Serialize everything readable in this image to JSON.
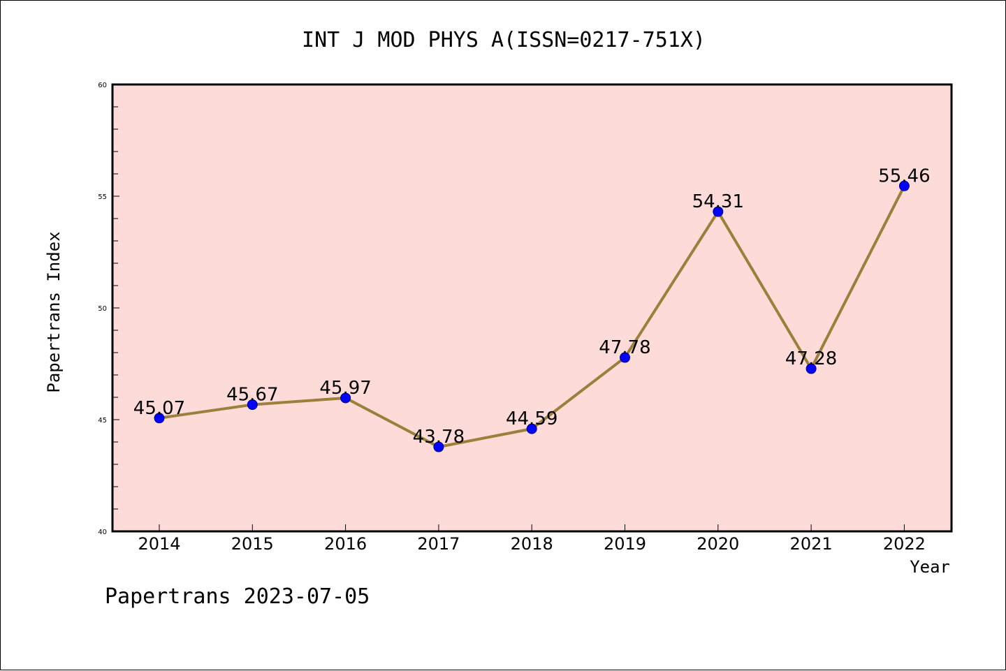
{
  "chart_data": {
    "type": "line",
    "title": "INT J MOD PHYS A(ISSN=0217-751X)",
    "xlabel": "Year",
    "ylabel": "Papertrans Index",
    "categories": [
      "2014",
      "2015",
      "2016",
      "2017",
      "2018",
      "2019",
      "2020",
      "2021",
      "2022"
    ],
    "series": [
      {
        "values": [
          45.07,
          45.67,
          45.97,
          43.78,
          44.59,
          47.78,
          54.31,
          47.28,
          55.46
        ],
        "labels": [
          "45.07",
          "45.67",
          "45.97",
          "43.78",
          "44.59",
          "47.78",
          "54.31",
          "47.28",
          "55.46"
        ]
      }
    ],
    "ylim": [
      40,
      60
    ],
    "yticks": [
      "40",
      "45",
      "50",
      "55",
      "60"
    ],
    "grid": false,
    "legend": "none",
    "colors": {
      "plot_background": "#fddbd9",
      "line": "#9b7f3a",
      "marker": "#0000ff"
    }
  },
  "footer": {
    "text": "Papertrans 2023-07-05"
  }
}
